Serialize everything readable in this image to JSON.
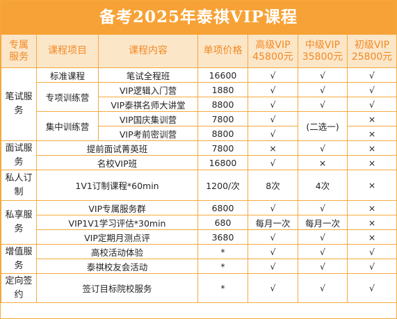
{
  "title": "备考2025年泰祺VIP课程",
  "headers": {
    "category_l1": "专属",
    "category_l2": "服务",
    "project": "课程项目",
    "content": "课程内容",
    "price": "单项价格",
    "senior_l1": "高级VIP",
    "senior_l2": "45800元",
    "mid_l1": "中级VIP",
    "mid_l2": "35800元",
    "junior_l1": "初级VIP",
    "junior_l2": "25800元"
  },
  "categories": {
    "written_l1": "笔试服",
    "written_l2": "务",
    "interview_l1": "面试服",
    "interview_l2": "务",
    "private_l1": "私人订",
    "private_l2": "制",
    "exclusive_l1": "私享服",
    "exclusive_l2": "务",
    "value_l1": "增值服",
    "value_l2": "务",
    "targeted_l1": "定向签",
    "targeted_l2": "约"
  },
  "projects": {
    "standard": "标准课程",
    "special": "专项训练营",
    "intensive": "集中训练营"
  },
  "rows": [
    {
      "content": "笔试全程班",
      "price": "16600",
      "senior": "√",
      "mid": "√",
      "junior": "√"
    },
    {
      "content": "VIP逻辑入门营",
      "price": "1880",
      "senior": "√",
      "mid": "√",
      "junior": "√"
    },
    {
      "content": "VIP泰祺名师大讲堂",
      "price": "8800",
      "senior": "√",
      "mid": "√",
      "junior": "√"
    },
    {
      "content": "VIP国庆集训营",
      "price": "7800",
      "senior": "√",
      "mid": "",
      "junior": "×"
    },
    {
      "content": "VIP考前密训营",
      "price": "8800",
      "senior": "√",
      "mid": "",
      "junior": "×"
    },
    {
      "content": "提前面试菁英班",
      "price": "7800",
      "senior": "×",
      "mid": "√",
      "junior": "×"
    },
    {
      "content": "名校VIP班",
      "price": "16800",
      "senior": "√",
      "mid": "×",
      "junior": "×"
    },
    {
      "content": "1V1订制课程*60min",
      "price": "1200/次",
      "senior": "8次",
      "mid": "4次",
      "junior": "×"
    },
    {
      "content": "VIP专属服务群",
      "price": "6800",
      "senior": "√",
      "mid": "√",
      "junior": "×"
    },
    {
      "content": "VIP1V1学习评估*30min",
      "price": "680",
      "senior": "每月一次",
      "mid": "每月一次",
      "junior": "×"
    },
    {
      "content": "VIP定期月测点评",
      "price": "3680",
      "senior": "√",
      "mid": "√",
      "junior": "×"
    },
    {
      "content": "高校活动体验",
      "price": "*",
      "senior": "√",
      "mid": "√",
      "junior": "√"
    },
    {
      "content": "泰祺校友会活动",
      "price": "*",
      "senior": "√",
      "mid": "√",
      "junior": "√"
    },
    {
      "content": "签订目标院校服务",
      "price": "*",
      "senior": "√",
      "mid": "√",
      "junior": "√"
    }
  ],
  "mid_intensive_note": "(二选一)"
}
